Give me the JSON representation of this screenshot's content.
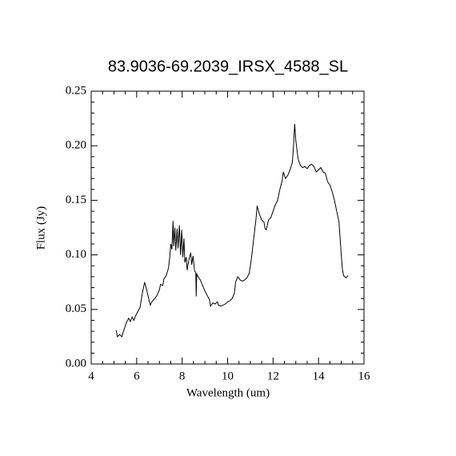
{
  "chart_data": {
    "type": "line",
    "title": "83.9036-69.2039_IRSX_4588_SL",
    "x_label": "Wavelength (um)",
    "y_label": "Flux (Jy)",
    "xlim": [
      4,
      16
    ],
    "ylim": [
      0,
      0.25
    ],
    "xticks": [
      4,
      6,
      8,
      10,
      12,
      14,
      16
    ],
    "yticks": [
      {
        "value": 0,
        "label": "0.00"
      },
      0.05,
      {
        "value": 0.1,
        "label": "0.10"
      },
      0.15,
      {
        "value": 0.2,
        "label": "0.20"
      },
      0.25
    ],
    "grid": false,
    "color": "#000000",
    "x": [
      5.1,
      5.15,
      5.25,
      5.35,
      5.45,
      5.55,
      5.65,
      5.72,
      5.8,
      5.88,
      5.95,
      6.05,
      6.15,
      6.25,
      6.35,
      6.45,
      6.55,
      6.6,
      6.7,
      6.8,
      6.9,
      7.0,
      7.05,
      7.15,
      7.2,
      7.3,
      7.4,
      7.45,
      7.5,
      7.55,
      7.6,
      7.63,
      7.68,
      7.72,
      7.78,
      7.82,
      7.88,
      7.93,
      7.98,
      8.03,
      8.08,
      8.12,
      8.18,
      8.22,
      8.3,
      8.38,
      8.42,
      8.48,
      8.55,
      8.6,
      8.62,
      8.64,
      8.7,
      8.8,
      8.9,
      9.0,
      9.1,
      9.2,
      9.25,
      9.35,
      9.45,
      9.55,
      9.6,
      9.7,
      9.8,
      9.9,
      10.0,
      10.1,
      10.2,
      10.3,
      10.35,
      10.45,
      10.55,
      10.65,
      10.75,
      10.85,
      10.95,
      11.05,
      11.15,
      11.25,
      11.3,
      11.4,
      11.5,
      11.6,
      11.65,
      11.7,
      11.8,
      11.9,
      12.0,
      12.1,
      12.2,
      12.3,
      12.4,
      12.45,
      12.55,
      12.65,
      12.75,
      12.85,
      12.9,
      12.95,
      13.0,
      13.1,
      13.2,
      13.3,
      13.4,
      13.5,
      13.6,
      13.7,
      13.8,
      13.9,
      14.0,
      14.1,
      14.2,
      14.3,
      14.4,
      14.5,
      14.6,
      14.7,
      14.8,
      14.9,
      14.95,
      15.0,
      15.05,
      15.1,
      15.2,
      15.3
    ],
    "values": [
      0.031,
      0.025,
      0.027,
      0.025,
      0.032,
      0.038,
      0.042,
      0.039,
      0.043,
      0.04,
      0.044,
      0.048,
      0.052,
      0.065,
      0.075,
      0.067,
      0.058,
      0.054,
      0.058,
      0.06,
      0.063,
      0.068,
      0.073,
      0.072,
      0.078,
      0.081,
      0.088,
      0.097,
      0.11,
      0.105,
      0.131,
      0.108,
      0.125,
      0.104,
      0.124,
      0.106,
      0.127,
      0.1,
      0.123,
      0.098,
      0.115,
      0.093,
      0.098,
      0.086,
      0.096,
      0.102,
      0.091,
      0.099,
      0.085,
      0.084,
      0.062,
      0.083,
      0.08,
      0.077,
      0.072,
      0.067,
      0.063,
      0.059,
      0.053,
      0.056,
      0.055,
      0.057,
      0.054,
      0.053,
      0.054,
      0.055,
      0.057,
      0.058,
      0.06,
      0.065,
      0.075,
      0.08,
      0.077,
      0.076,
      0.077,
      0.079,
      0.083,
      0.097,
      0.115,
      0.133,
      0.145,
      0.137,
      0.132,
      0.13,
      0.124,
      0.123,
      0.132,
      0.134,
      0.14,
      0.146,
      0.15,
      0.16,
      0.168,
      0.176,
      0.17,
      0.173,
      0.178,
      0.185,
      0.2,
      0.22,
      0.205,
      0.188,
      0.182,
      0.18,
      0.181,
      0.179,
      0.182,
      0.183,
      0.181,
      0.176,
      0.178,
      0.18,
      0.176,
      0.175,
      0.167,
      0.164,
      0.158,
      0.15,
      0.14,
      0.13,
      0.115,
      0.1,
      0.087,
      0.081,
      0.079,
      0.081
    ]
  }
}
